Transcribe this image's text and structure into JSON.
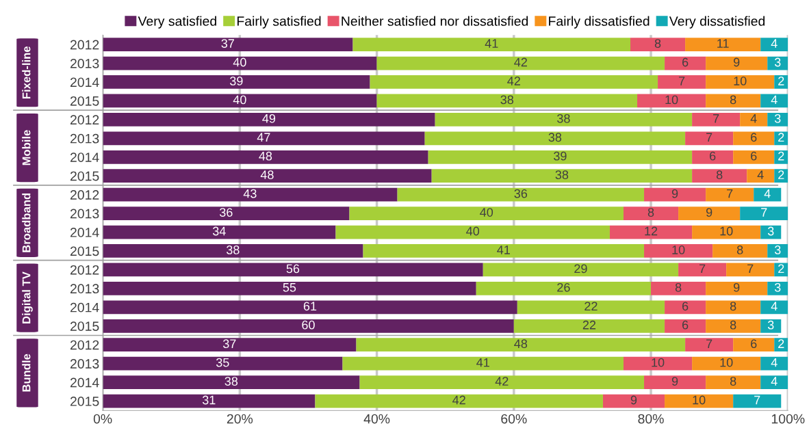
{
  "chart_data": {
    "type": "bar",
    "orientation": "horizontal",
    "stacked": true,
    "categories": [
      "2012",
      "2013",
      "2014",
      "2015",
      "2012",
      "2013",
      "2014",
      "2015",
      "2012",
      "2013",
      "2014",
      "2015",
      "2012",
      "2013",
      "2014",
      "2015",
      "2012",
      "2013",
      "2014",
      "2015"
    ],
    "series": [
      {
        "name": "Very satisfied",
        "color": "#622262",
        "values": [
          36.5,
          40,
          39,
          40,
          48.5,
          47,
          47.5,
          48,
          43,
          36,
          34,
          38,
          55.5,
          54.5,
          60.5,
          60,
          37,
          35,
          37.5,
          31
        ],
        "value_labels": [
          "37",
          "40",
          "39",
          "40",
          "49",
          "47",
          "48",
          "48",
          "43",
          "36",
          "34",
          "38",
          "56",
          "55",
          "61",
          "60",
          "37",
          "35",
          "38",
          "31"
        ]
      },
      {
        "name": "Fairly satisfied",
        "color": "#a6cf38",
        "values": [
          40.5,
          42,
          42,
          38,
          37.5,
          38,
          38.5,
          38,
          36,
          40,
          40,
          41,
          28.5,
          25.5,
          21.5,
          22,
          48,
          41,
          41.5,
          42
        ],
        "value_labels": [
          "41",
          "42",
          "42",
          "38",
          "38",
          "38",
          "39",
          "38",
          "36",
          "40",
          "40",
          "41",
          "29",
          "26",
          "22",
          "22",
          "48",
          "41",
          "42",
          "42"
        ]
      },
      {
        "name": "Neither satisfied nor dissatisfied",
        "color": "#e8546a",
        "values": [
          8,
          6,
          7,
          10,
          7,
          7,
          6,
          8,
          9,
          8,
          12,
          10,
          7,
          8,
          6,
          6,
          7,
          10,
          9,
          9
        ],
        "value_labels": [
          "8",
          "6",
          "7",
          "10",
          "7",
          "7",
          "6",
          "8",
          "9",
          "8",
          "12",
          "10",
          "7",
          "8",
          "6",
          "6",
          "7",
          "10",
          "9",
          "9"
        ]
      },
      {
        "name": "Fairly dissatisfied",
        "color": "#f7941d",
        "values": [
          11,
          9,
          10,
          8,
          4,
          6,
          6,
          4,
          7,
          9,
          10,
          8,
          7,
          9,
          8,
          8,
          6,
          10,
          8,
          10
        ],
        "value_labels": [
          "11",
          "9",
          "10",
          "8",
          "4",
          "6",
          "6",
          "4",
          "7",
          "9",
          "10",
          "8",
          "7",
          "9",
          "8",
          "8",
          "6",
          "10",
          "8",
          "10"
        ]
      },
      {
        "name": "Very dissatisfied",
        "color": "#12a9b5",
        "values": [
          4,
          3,
          2,
          4,
          3,
          2,
          2,
          2,
          4,
          7,
          3,
          3,
          2,
          3,
          4,
          3,
          2,
          4,
          4,
          7
        ],
        "value_labels": [
          "4",
          "3",
          "2",
          "4",
          "3",
          "2",
          "2",
          "2",
          "4",
          "7",
          "3",
          "3",
          "2",
          "3",
          "4",
          "3",
          "2",
          "4",
          "4",
          "7"
        ]
      }
    ],
    "xlim": [
      0,
      100
    ],
    "xticks": [
      {
        "value": 0,
        "label": "0%"
      },
      {
        "value": 20,
        "label": "20%"
      },
      {
        "value": 40,
        "label": "40%"
      },
      {
        "value": 60,
        "label": "60%"
      },
      {
        "value": 80,
        "label": "80%"
      },
      {
        "value": 100,
        "label": "100%"
      }
    ],
    "grid": "x",
    "legend": "top",
    "annotations": [
      "Fixed-line",
      "Mobile",
      "Broadband",
      "Digital TV",
      "Bundle"
    ]
  }
}
